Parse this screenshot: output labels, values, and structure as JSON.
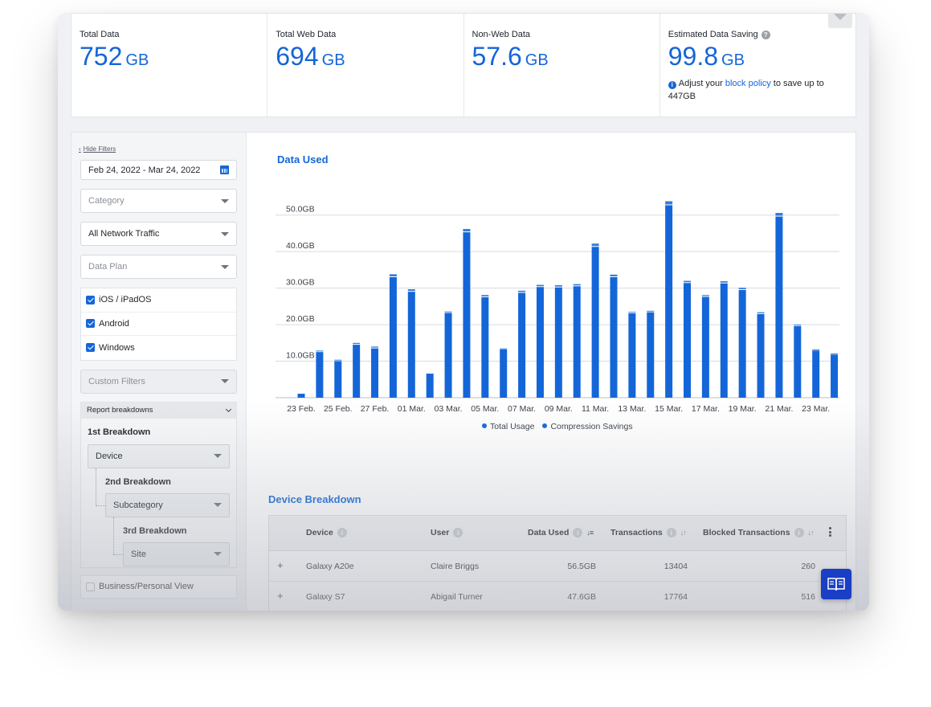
{
  "stats": [
    {
      "label": "Total Data",
      "value": "752",
      "unit": "GB"
    },
    {
      "label": "Total Web Data",
      "value": "694",
      "unit": "GB"
    },
    {
      "label": "Non-Web Data",
      "value": "57.6",
      "unit": "GB"
    },
    {
      "label": "Estimated Data Saving",
      "value": "99.8",
      "unit": "GB",
      "note_prefix": "Adjust your",
      "note_link": "block policy",
      "note_suffix": "to save up to 447GB"
    }
  ],
  "filters": {
    "hide_label": "Hide Filters",
    "date_range": "Feb 24, 2022 - Mar 24, 2022",
    "category_placeholder": "Category",
    "traffic": "All Network Traffic",
    "data_plan_placeholder": "Data Plan",
    "platforms": [
      {
        "label": "iOS / iPadOS",
        "checked": true
      },
      {
        "label": "Android",
        "checked": true
      },
      {
        "label": "Windows",
        "checked": true
      }
    ],
    "custom_filters": "Custom Filters",
    "report_breakdowns": {
      "title": "Report breakdowns",
      "first_label": "1st Breakdown",
      "first_value": "Device",
      "second_label": "2nd Breakdown",
      "second_value": "Subcategory",
      "third_label": "3rd Breakdown",
      "third_value": "Site"
    },
    "business_personal": "Business/Personal View"
  },
  "chart_title": "Data Used",
  "chart_data": {
    "type": "bar",
    "stacked": true,
    "categories": [
      "23 Feb.",
      "24 Feb.",
      "25 Feb.",
      "26 Feb.",
      "27 Feb.",
      "28 Feb.",
      "01 Mar.",
      "02 Mar.",
      "03 Mar.",
      "04 Mar.",
      "05 Mar.",
      "06 Mar.",
      "07 Mar.",
      "08 Mar.",
      "09 Mar.",
      "10 Mar.",
      "11 Mar.",
      "12 Mar.",
      "13 Mar.",
      "14 Mar.",
      "15 Mar.",
      "16 Mar.",
      "17 Mar.",
      "18 Mar.",
      "19 Mar.",
      "20 Mar.",
      "21 Mar.",
      "22 Mar.",
      "23 Mar.",
      "24 Mar."
    ],
    "tick_labels": [
      "23 Feb.",
      "25 Feb.",
      "27 Feb.",
      "01 Mar.",
      "03 Mar.",
      "05 Mar.",
      "07 Mar.",
      "09 Mar.",
      "11 Mar.",
      "13 Mar.",
      "15 Mar.",
      "17 Mar.",
      "19 Mar.",
      "21 Mar.",
      "23 Mar."
    ],
    "y_tick_labels": [
      "10.0GB",
      "20.0GB",
      "30.0GB",
      "40.0GB",
      "50.0GB"
    ],
    "series": [
      {
        "name": "Total Usage",
        "color": "#1466d8",
        "values": [
          1,
          12.5,
          10,
          14.5,
          13.5,
          33,
          29,
          6.5,
          23.2,
          45.3,
          27.5,
          13.2,
          28.7,
          30.3,
          30.2,
          30.5,
          41.3,
          33,
          23.1,
          23.4,
          52.7,
          31.4,
          27.6,
          31.3,
          29.5,
          22.9,
          49.6,
          19.6,
          12.9,
          11.8
        ]
      },
      {
        "name": "Compression Savings",
        "color": "#1466d8",
        "values": [
          0.1,
          0.4,
          0.4,
          0.5,
          0.5,
          0.8,
          0.7,
          0.1,
          0.4,
          0.9,
          0.6,
          0.3,
          0.6,
          0.6,
          0.6,
          0.6,
          0.9,
          0.7,
          0.4,
          0.4,
          1.1,
          0.6,
          0.5,
          0.6,
          0.6,
          0.5,
          1.0,
          0.4,
          0.3,
          0.3
        ]
      }
    ],
    "ylim": [
      0,
      55
    ],
    "grid": true,
    "legend_position": "bottom"
  },
  "device_breakdown": {
    "title": "Device Breakdown",
    "columns": [
      "Device",
      "User",
      "Data Used",
      "Transactions",
      "Blocked Transactions"
    ],
    "rows": [
      {
        "device": "Galaxy A20e",
        "user": "Claire Briggs",
        "data_used": "56.5GB",
        "transactions": "13404",
        "blocked": "260"
      },
      {
        "device": "Galaxy S7",
        "user": "Abigail Turner",
        "data_used": "47.6GB",
        "transactions": "17764",
        "blocked": "516"
      }
    ]
  }
}
